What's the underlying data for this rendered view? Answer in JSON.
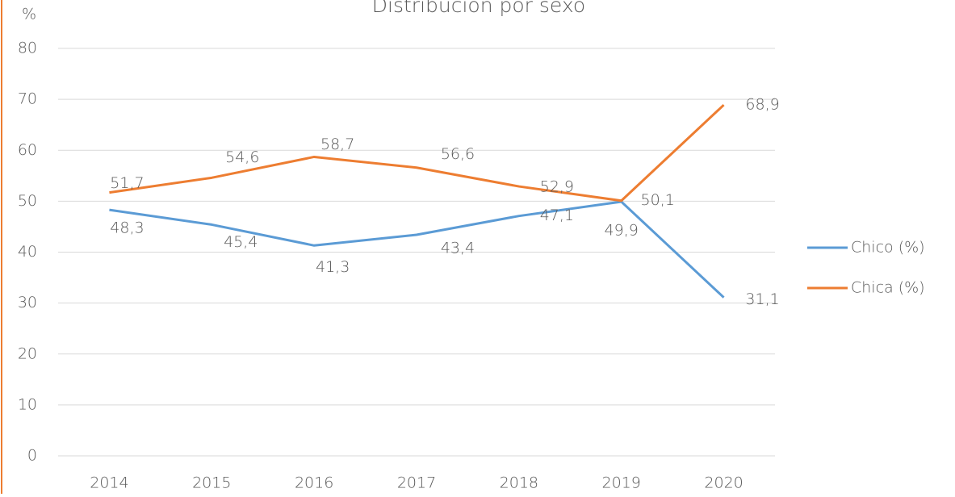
{
  "chart_data": {
    "type": "line",
    "title": "Distribución por sexo",
    "y_label": "%",
    "categories": [
      "2014",
      "2015",
      "2016",
      "2017",
      "2018",
      "2019",
      "2020"
    ],
    "series": [
      {
        "name": "Chico (%)",
        "color": "#5b9bd5",
        "values": [
          48.3,
          45.4,
          41.3,
          43.4,
          47.1,
          49.9,
          31.1
        ],
        "value_labels": [
          "48,3",
          "45,4",
          "41,3",
          "43,4",
          "47,1",
          "49,9",
          "31,1"
        ]
      },
      {
        "name": "Chica (%)",
        "color": "#ed7d31",
        "values": [
          51.7,
          54.6,
          58.7,
          56.6,
          52.9,
          50.1,
          68.9
        ],
        "value_labels": [
          "51,7",
          "54,6",
          "58,7",
          "56,6",
          "52,9",
          "50,1",
          "68,9"
        ]
      }
    ],
    "ylim": [
      0,
      80
    ],
    "yticks": [
      0,
      10,
      20,
      30,
      40,
      50,
      60,
      70,
      80
    ],
    "grid": true,
    "legend": "right"
  }
}
